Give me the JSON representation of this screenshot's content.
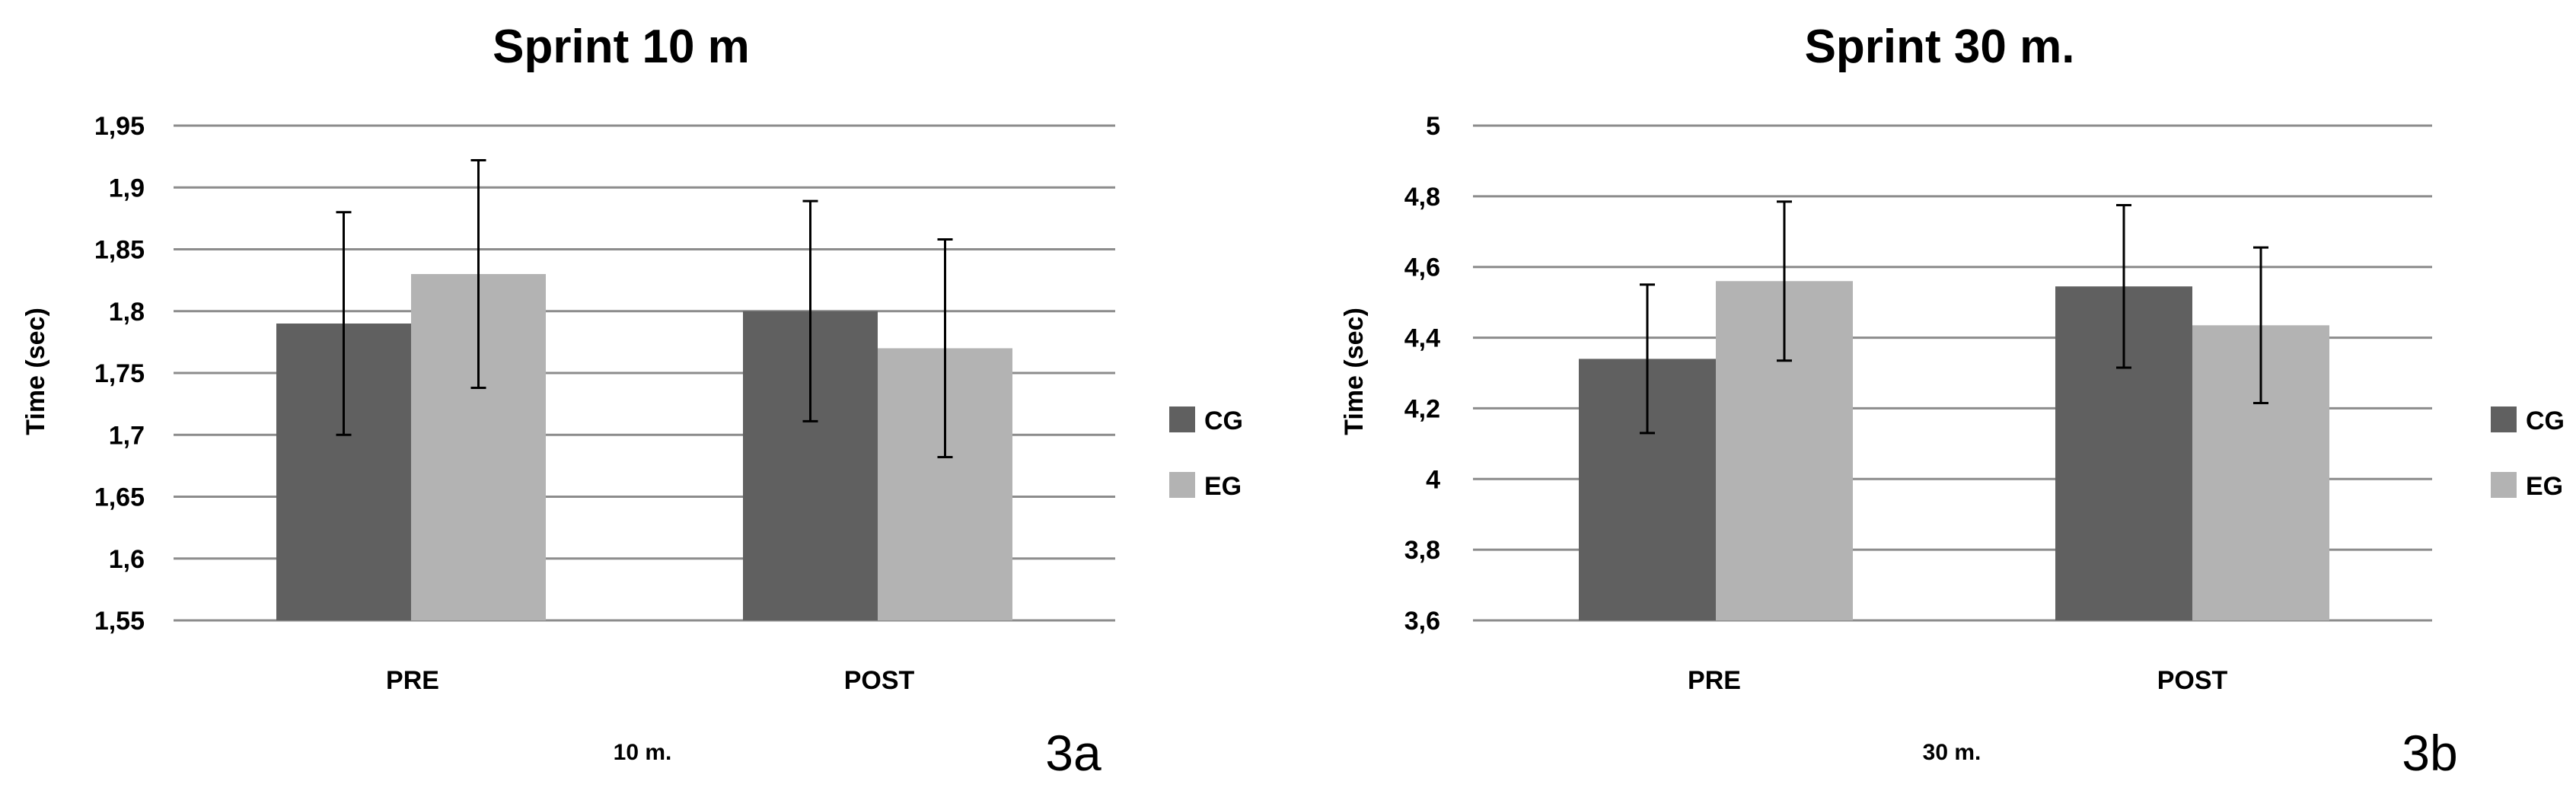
{
  "chart_data": [
    {
      "type": "bar",
      "title": "Sprint 10 m",
      "ylabel": "Time (sec)",
      "xlabel": "10 m.",
      "panel_label": "3a",
      "categories": [
        "PRE",
        "POST"
      ],
      "ylim": [
        1.55,
        1.95
      ],
      "yticks": [
        "1,55",
        "1,6",
        "1,65",
        "1,7",
        "1,75",
        "1,8",
        "1,85",
        "1,9",
        "1,95"
      ],
      "ytick_values": [
        1.55,
        1.6,
        1.65,
        1.7,
        1.75,
        1.8,
        1.85,
        1.9,
        1.95
      ],
      "grid": true,
      "legend_position": "right",
      "series": [
        {
          "name": "CG",
          "color": "#606060",
          "values": [
            1.79,
            1.8
          ],
          "errors": [
            0.09,
            0.089
          ]
        },
        {
          "name": "EG",
          "color": "#b3b3b3",
          "values": [
            1.83,
            1.77
          ],
          "errors": [
            0.092,
            0.088
          ]
        }
      ]
    },
    {
      "type": "bar",
      "title": "Sprint 30 m.",
      "ylabel": "Time (sec)",
      "xlabel": "30 m.",
      "panel_label": "3b",
      "categories": [
        "PRE",
        "POST"
      ],
      "ylim": [
        3.6,
        5.0
      ],
      "yticks": [
        "3,6",
        "3,8",
        "4",
        "4,2",
        "4,4",
        "4,6",
        "4,8",
        "5"
      ],
      "ytick_values": [
        3.6,
        3.8,
        4.0,
        4.2,
        4.4,
        4.6,
        4.8,
        5.0
      ],
      "grid": true,
      "legend_position": "right",
      "series": [
        {
          "name": "CG",
          "color": "#606060",
          "values": [
            4.34,
            4.545
          ],
          "errors": [
            0.21,
            0.23
          ]
        },
        {
          "name": "EG",
          "color": "#b3b3b3",
          "values": [
            4.56,
            4.435
          ],
          "errors": [
            0.225,
            0.22
          ]
        }
      ]
    }
  ]
}
